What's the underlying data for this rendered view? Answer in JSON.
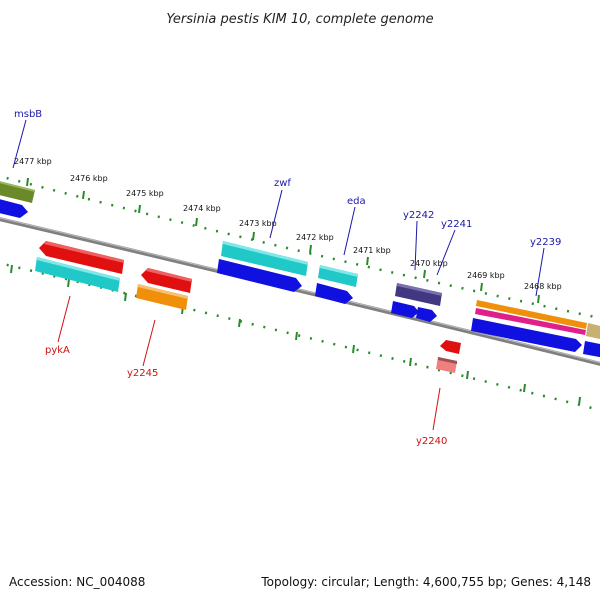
{
  "title": "Yersinia pestis KIM 10, complete genome",
  "footer": {
    "accession": "Accession: NC_004088",
    "summary": "Topology: circular; Length: 4,600,755 bp; Genes: 4,148"
  },
  "colors": {
    "backbone": "#808080",
    "tick": "#2a8a2a",
    "label_pos": "#1a1aa8",
    "label_neg": "#d01010",
    "red": "#e01010",
    "cyan": "#20c8c8",
    "blue": "#1010e0",
    "orange": "#f0900a",
    "olive": "#6a8a2a",
    "navy": "#403880",
    "magenta": "#e0208a",
    "khaki": "#c8b070",
    "salmon": "#f08080"
  },
  "ticks": [
    {
      "label": "2477 kbp"
    },
    {
      "label": "2476 kbp"
    },
    {
      "label": "2475 kbp"
    },
    {
      "label": "2474 kbp"
    },
    {
      "label": "2473 kbp"
    },
    {
      "label": "2472 kbp"
    },
    {
      "label": "2471 kbp"
    },
    {
      "label": "2470 kbp"
    },
    {
      "label": "2469 kbp"
    },
    {
      "label": "2468 kbp"
    }
  ],
  "genes": [
    {
      "name": "msbB",
      "strand": "+"
    },
    {
      "name": "zwf",
      "strand": "+"
    },
    {
      "name": "eda",
      "strand": "+"
    },
    {
      "name": "y2242",
      "strand": "+"
    },
    {
      "name": "y2241",
      "strand": "+"
    },
    {
      "name": "y2239",
      "strand": "+"
    },
    {
      "name": "pykA",
      "strand": "-"
    },
    {
      "name": "y2245",
      "strand": "-"
    },
    {
      "name": "y2240",
      "strand": "-"
    }
  ]
}
